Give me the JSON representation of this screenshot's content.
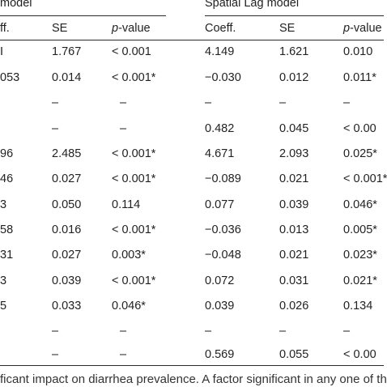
{
  "header": {
    "left_group": "model",
    "right_group": "Spatial Lag model",
    "columns": {
      "left_coeff": "ff.",
      "left_se": "SE",
      "left_p_prefix": "p",
      "left_p_suffix": "-value",
      "right_coeff": "Coeff.",
      "right_se": "SE",
      "right_p_prefix": "p",
      "right_p_suffix": "-value"
    }
  },
  "rows": [
    {
      "lc": "I",
      "lse": "1.767",
      "lp": "< 0.001",
      "rc": "4.149",
      "rse": "1.621",
      "rp": "0.010"
    },
    {
      "lc": "053",
      "lse": "0.014",
      "lp": "< 0.001*",
      "rc": "−0.030",
      "rse": "0.012",
      "rp": "0.011*"
    },
    {
      "lc": "",
      "lse": "–",
      "lp": "–",
      "rc": "–",
      "rse": "–",
      "rp": "–"
    },
    {
      "lc": "",
      "lse": "–",
      "lp": "–",
      "rc": "0.482",
      "rse": "0.045",
      "rp": "< 0.00"
    },
    {
      "lc": "96",
      "lse": "2.485",
      "lp": "< 0.001*",
      "rc": "4.671",
      "rse": "2.093",
      "rp": "0.025*"
    },
    {
      "lc": "46",
      "lse": "0.027",
      "lp": "< 0.001*",
      "rc": "−0.089",
      "rse": "0.021",
      "rp": "< 0.001*"
    },
    {
      "lc": "3",
      "lse": "0.050",
      "lp": "0.114",
      "rc": "0.077",
      "rse": "0.039",
      "rp": "0.046*"
    },
    {
      "lc": "58",
      "lse": "0.016",
      "lp": "< 0.001*",
      "rc": "−0.036",
      "rse": "0.013",
      "rp": "0.005*"
    },
    {
      "lc": "31",
      "lse": "0.027",
      "lp": "0.003*",
      "rc": "−0.048",
      "rse": "0.021",
      "rp": "0.023*"
    },
    {
      "lc": "3",
      "lse": "0.039",
      "lp": "< 0.001*",
      "rc": "0.072",
      "rse": "0.031",
      "rp": "0.021*"
    },
    {
      "lc": "5",
      "lse": "0.033",
      "lp": "0.046*",
      "rc": "0.039",
      "rse": "0.026",
      "rp": "0.134"
    },
    {
      "lc": "",
      "lse": "–",
      "lp": "–",
      "rc": "–",
      "rse": "–",
      "rp": "–"
    },
    {
      "lc": "",
      "lse": "–",
      "lp": "–",
      "rc": "0.569",
      "rse": "0.055",
      "rp": "< 0.00"
    }
  ],
  "caption": "ficant impact on diarrhea prevalence. A factor significant in any one of th"
}
